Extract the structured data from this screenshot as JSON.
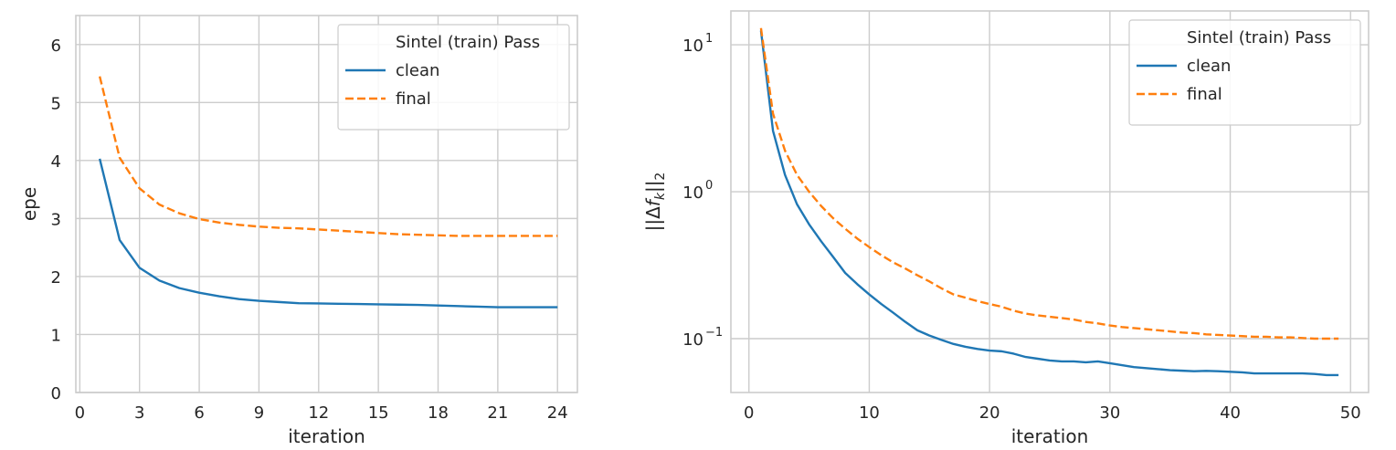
{
  "chart_data": [
    {
      "type": "line",
      "yscale": "linear",
      "xlabel": "iteration",
      "ylabel": "epe",
      "xlim": [
        -0.2,
        25.0
      ],
      "ylim": [
        0,
        6.5
      ],
      "xticks": [
        0,
        3,
        6,
        9,
        12,
        15,
        18,
        21,
        24
      ],
      "yticks": [
        0,
        1,
        2,
        3,
        4,
        5,
        6
      ],
      "legend": {
        "title": "Sintel (train) Pass",
        "location": "top-right"
      },
      "series": [
        {
          "name": "clean",
          "color": "#1f77b4",
          "style": "solid",
          "x": [
            1,
            2,
            3,
            4,
            5,
            6,
            7,
            8,
            9,
            10,
            11,
            12,
            13,
            14,
            15,
            16,
            17,
            18,
            19,
            20,
            21,
            22,
            23,
            24
          ],
          "y": [
            4.03,
            2.63,
            2.15,
            1.93,
            1.8,
            1.72,
            1.66,
            1.61,
            1.58,
            1.56,
            1.54,
            1.535,
            1.53,
            1.525,
            1.52,
            1.515,
            1.51,
            1.5,
            1.49,
            1.48,
            1.47,
            1.47,
            1.47,
            1.47
          ]
        },
        {
          "name": "final",
          "color": "#ff7f0e",
          "style": "dashed",
          "x": [
            1,
            2,
            3,
            4,
            5,
            6,
            7,
            8,
            9,
            10,
            11,
            12,
            13,
            14,
            15,
            16,
            17,
            18,
            19,
            20,
            21,
            22,
            23,
            24
          ],
          "y": [
            5.45,
            4.05,
            3.52,
            3.24,
            3.09,
            2.99,
            2.93,
            2.89,
            2.86,
            2.84,
            2.83,
            2.81,
            2.79,
            2.77,
            2.75,
            2.73,
            2.72,
            2.71,
            2.7,
            2.7,
            2.7,
            2.7,
            2.7,
            2.7
          ]
        }
      ]
    },
    {
      "type": "line",
      "yscale": "log",
      "xlabel": "iteration",
      "ylabel": "||Δf_k||_2",
      "xlim": [
        -1.5,
        51.5
      ],
      "ylim": [
        0.043,
        17
      ],
      "xticks": [
        0,
        10,
        20,
        30,
        40,
        50
      ],
      "yticks": [
        0.1,
        1,
        10
      ],
      "ytick_labels": [
        {
          "base": "10",
          "exp": "−1"
        },
        {
          "base": "10",
          "exp": "0"
        },
        {
          "base": "10",
          "exp": "1"
        }
      ],
      "legend": {
        "title": "Sintel (train) Pass",
        "location": "top-right"
      },
      "series": [
        {
          "name": "clean",
          "color": "#1f77b4",
          "style": "solid",
          "x": [
            1,
            2,
            3,
            4,
            5,
            6,
            7,
            8,
            9,
            10,
            11,
            12,
            13,
            14,
            15,
            16,
            17,
            18,
            19,
            20,
            21,
            22,
            23,
            24,
            25,
            26,
            27,
            28,
            29,
            30,
            31,
            32,
            33,
            34,
            35,
            36,
            37,
            38,
            39,
            40,
            41,
            42,
            43,
            44,
            45,
            46,
            47,
            48,
            49
          ],
          "y": [
            12.5,
            2.6,
            1.3,
            0.82,
            0.6,
            0.46,
            0.36,
            0.28,
            0.235,
            0.2,
            0.172,
            0.15,
            0.13,
            0.114,
            0.105,
            0.098,
            0.092,
            0.088,
            0.085,
            0.083,
            0.082,
            0.079,
            0.075,
            0.073,
            0.071,
            0.07,
            0.07,
            0.069,
            0.07,
            0.068,
            0.066,
            0.064,
            0.063,
            0.062,
            0.061,
            0.0605,
            0.06,
            0.0603,
            0.06,
            0.0595,
            0.059,
            0.058,
            0.058,
            0.058,
            0.058,
            0.058,
            0.0575,
            0.0565,
            0.0565
          ]
        },
        {
          "name": "final",
          "color": "#ff7f0e",
          "style": "dashed",
          "x": [
            1,
            2,
            3,
            4,
            5,
            6,
            7,
            8,
            9,
            10,
            11,
            12,
            13,
            14,
            15,
            16,
            17,
            18,
            19,
            20,
            21,
            22,
            23,
            24,
            25,
            26,
            27,
            28,
            29,
            30,
            31,
            32,
            33,
            34,
            35,
            36,
            37,
            38,
            39,
            40,
            41,
            42,
            43,
            44,
            45,
            46,
            47,
            48,
            49
          ],
          "y": [
            13.0,
            3.4,
            1.9,
            1.3,
            1.0,
            0.8,
            0.66,
            0.56,
            0.48,
            0.42,
            0.37,
            0.33,
            0.3,
            0.27,
            0.245,
            0.22,
            0.2,
            0.19,
            0.18,
            0.172,
            0.165,
            0.155,
            0.148,
            0.144,
            0.141,
            0.138,
            0.135,
            0.13,
            0.127,
            0.123,
            0.12,
            0.118,
            0.116,
            0.114,
            0.112,
            0.11,
            0.109,
            0.107,
            0.106,
            0.105,
            0.104,
            0.103,
            0.103,
            0.102,
            0.102,
            0.101,
            0.1,
            0.1,
            0.1
          ]
        }
      ]
    }
  ]
}
